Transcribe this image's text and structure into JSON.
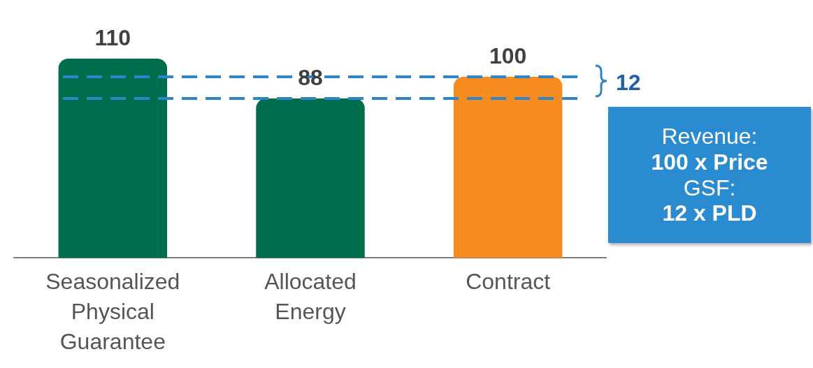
{
  "chart_data": {
    "type": "bar",
    "categories": [
      "Seasonalized Physical Guarantee",
      "Allocated Energy",
      "Contract"
    ],
    "values": [
      110,
      88,
      100
    ],
    "colors": [
      "#006e4c",
      "#006e4c",
      "#f68b1f"
    ],
    "tick_labels": "x",
    "grid": false,
    "legend": false,
    "data_labels": true,
    "ref_lines": [
      {
        "axis": "y",
        "value": 100,
        "color": "#2e86c8",
        "line_style": "dashed"
      },
      {
        "axis": "y",
        "value": 88,
        "color": "#2e86c8",
        "line_style": "dashed"
      }
    ],
    "annotations": [
      "12",
      "Revenue:",
      "100 x Price",
      "GSF:",
      "12 x PLD"
    ]
  }
}
